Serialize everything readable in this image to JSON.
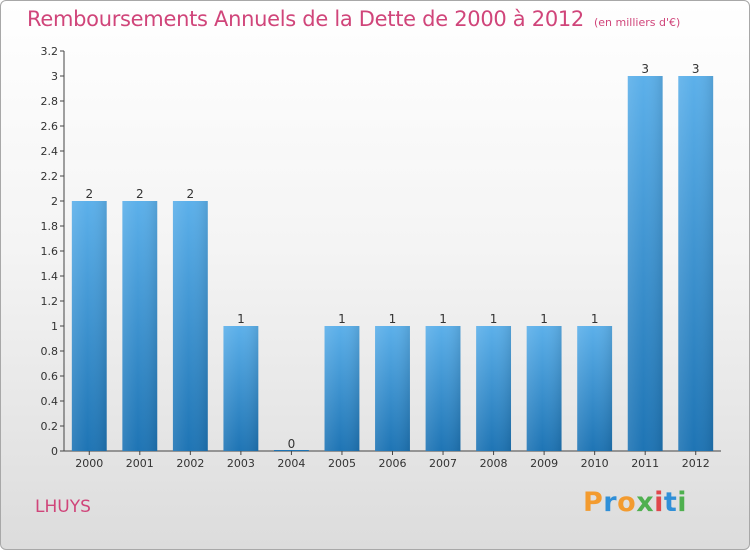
{
  "title": "Remboursements Annuels de la Dette de 2000 à 2012",
  "unit": "(en milliers d'€)",
  "commune": "LHUYS",
  "brand": {
    "letters": [
      "P",
      "r",
      "o",
      "x",
      "i",
      "t",
      "i"
    ],
    "colors": [
      "#f39b2f",
      "#2f8fd8",
      "#f39b2f",
      "#4fb04f",
      "#e0474c",
      "#2f8fd8",
      "#4fb04f"
    ]
  },
  "colors": {
    "title": "#d0457a",
    "bar_top": "#5cb0ea",
    "bar_bottom": "#1e74b4"
  },
  "chart_data": {
    "type": "bar",
    "categories": [
      "2000",
      "2001",
      "2002",
      "2003",
      "2004",
      "2005",
      "2006",
      "2007",
      "2008",
      "2009",
      "2010",
      "2011",
      "2012"
    ],
    "values": [
      2,
      2,
      2,
      1,
      0,
      1,
      1,
      1,
      1,
      1,
      1,
      3,
      3
    ],
    "data_labels": [
      "2",
      "2",
      "2",
      "1",
      "0",
      "1",
      "1",
      "1",
      "1",
      "1",
      "1",
      "3",
      "3"
    ],
    "y_ticks": [
      "0",
      "0.2",
      "0.4",
      "0.6",
      "0.8",
      "1",
      "1.2",
      "1.4",
      "1.6",
      "1.8",
      "2",
      "2.2",
      "2.4",
      "2.6",
      "2.8",
      "3",
      "3.2"
    ],
    "ylim": [
      0,
      3.2
    ],
    "grid": false,
    "legend": "none"
  }
}
